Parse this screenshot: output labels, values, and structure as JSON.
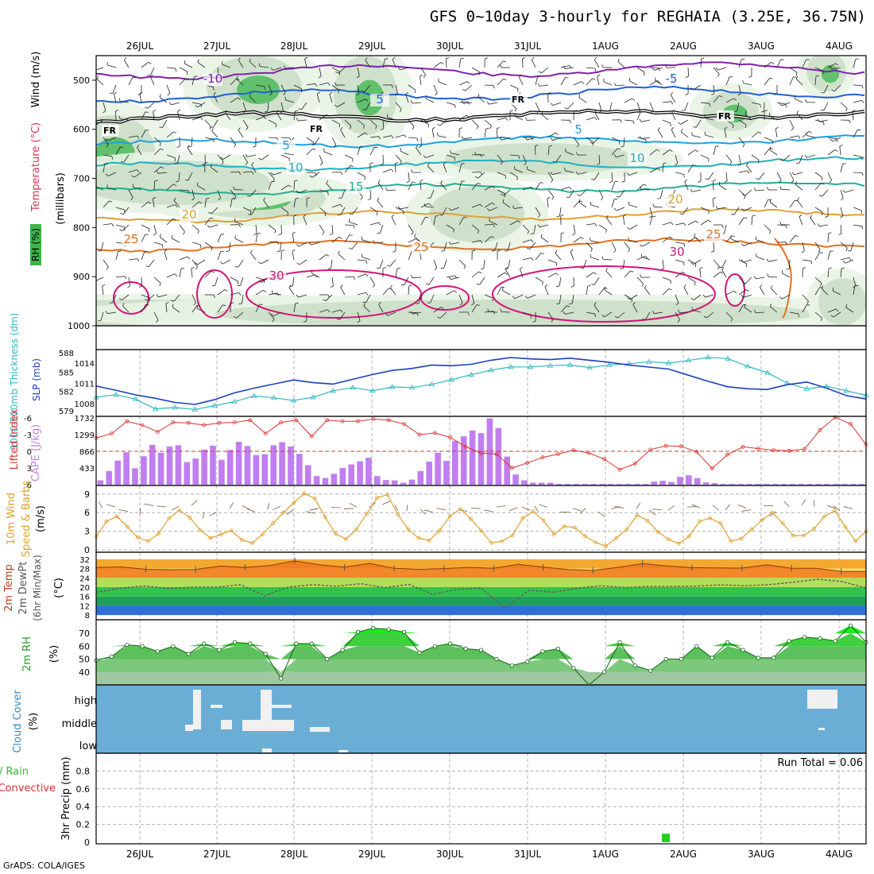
{
  "title": "GFS 0~10day 3-hourly for REGHAIA (3.25E, 36.75N)",
  "credit": "GrADS: COLA/IGES",
  "colors": {
    "grid": "#b0b0b0",
    "wind_barb": "#222222",
    "temp_contour_hot": "#d4147a",
    "temp_contour_warm": "#e07020",
    "temp_contour_mid": "#20b090",
    "temp_contour_cool": "#2060d0",
    "temp_contour_cold": "#8020b0",
    "freezing_line": "#000000",
    "rh_fill": "#3cb44b",
    "slp_line": "#1c3fbf",
    "thickness_line": "#2fb8c0",
    "cape_bar": "#c07ef0",
    "li_line": "#e03030",
    "wind_speed_line": "#e0a030",
    "temp_band_hot": "#f07820",
    "dewpt_line": "#606060",
    "rh2m_fill": "#33cc33",
    "cloud_bg": "#6aaed6",
    "cloud_fill": "#f0f0f0",
    "precip_bar": "#22cc22"
  },
  "chart_data": [
    {
      "type": "contour",
      "panel": "upper_air",
      "left_labels": [
        "RH (%)",
        "Temperature (°C)",
        "Wind (m/s)"
      ],
      "ylabel": "(millibars)",
      "x_top_labels": [
        "26JUL",
        "27JUL",
        "28JUL",
        "29JUL",
        "30JUL",
        "31JUL",
        "1AUG",
        "2AUG",
        "3AUG",
        "4AUG"
      ],
      "y_ticks": [
        "500",
        "600",
        "700",
        "800",
        "900",
        "1000"
      ],
      "freezing_label": "FR",
      "contour_labels": [
        "-10",
        "-5",
        "5",
        "10",
        "15",
        "20",
        "25",
        "30"
      ]
    },
    {
      "type": "line",
      "panel": "slp_thickness",
      "left_labels": [
        "1000-500mb Thickness (dm)",
        "SLP (mb)"
      ],
      "y_ticks_thickness": [
        "588",
        "585",
        "582",
        "579"
      ],
      "y_ticks_slp": [
        "1014",
        "1011",
        "1008"
      ],
      "series": [
        {
          "name": "SLP (mb)",
          "values": [
            1010.6,
            1010.0,
            1009.3,
            1008.8,
            1008.2,
            1007.9,
            1008.6,
            1009.6,
            1010.3,
            1010.9,
            1011.5,
            1011.1,
            1010.9,
            1011.6,
            1012.3,
            1012.9,
            1013.2,
            1013.7,
            1013.6,
            1013.8,
            1014.4,
            1014.8,
            1014.6,
            1014.5,
            1014.7,
            1014.4,
            1014.1,
            1013.7,
            1013.4,
            1013.1,
            1012.2,
            1011.3,
            1010.5,
            1010.2,
            1010.1,
            1010.8,
            1011.2,
            1010.3,
            1009.2,
            1008.7
          ]
        },
        {
          "name": "1000-500mb Thickness (dm)",
          "values": [
            581.1,
            581.5,
            580.8,
            579.3,
            579.5,
            579.2,
            579.8,
            580.4,
            581.3,
            581.0,
            580.6,
            581.1,
            582.1,
            582.6,
            582.1,
            582.7,
            582.6,
            583.1,
            583.8,
            584.6,
            585.3,
            585.8,
            585.8,
            586.0,
            586.1,
            585.7,
            586.1,
            586.3,
            586.6,
            586.4,
            586.8,
            587.3,
            587.1,
            585.9,
            584.9,
            583.3,
            582.4,
            582.8,
            582.1,
            581.4
          ]
        }
      ]
    },
    {
      "type": "bar",
      "panel": "cape_li",
      "left_labels": [
        "Lifted Index",
        "CAPE (J/kg)"
      ],
      "y_ticks_cape": [
        "1732",
        "1299",
        "866",
        "433"
      ],
      "y_ticks_li": [
        "-6",
        "-3",
        "0",
        "3",
        "6"
      ],
      "series": [
        {
          "name": "CAPE (J/kg)",
          "values": [
            110,
            350,
            620,
            830,
            420,
            730,
            1020,
            820,
            980,
            1010,
            580,
            670,
            900,
            1000,
            640,
            890,
            1100,
            990,
            760,
            780,
            1010,
            1090,
            980,
            790,
            500,
            220,
            170,
            280,
            430,
            520,
            600,
            690,
            220,
            120,
            110,
            50,
            130,
            350,
            590,
            820,
            610,
            1120,
            1240,
            1390,
            1320,
            1700,
            1450,
            720,
            260,
            110,
            50,
            50,
            50,
            20,
            20,
            20,
            20,
            20,
            20,
            20,
            20,
            20,
            20,
            20,
            80,
            100,
            70,
            200,
            240,
            170,
            60,
            40,
            20,
            20,
            20,
            20,
            20,
            20,
            20,
            20,
            20,
            20,
            20,
            20,
            20,
            20,
            20,
            20,
            20
          ]
        },
        {
          "name": "Lifted Index",
          "values": [
            -2.4,
            -3.2,
            -5.4,
            -4.7,
            -3.5,
            -5.2,
            -5.1,
            -4.7,
            -5.1,
            -5.2,
            -5.6,
            -3.2,
            -5.2,
            -5.6,
            -2.7,
            -5.6,
            -5.4,
            -5.4,
            -5.8,
            -5.6,
            -4.9,
            -3.0,
            -3.3,
            -2.5,
            -0.8,
            0.3,
            0.5,
            3.0,
            2.1,
            1.1,
            0.5,
            -0.2,
            0.3,
            1.4,
            3.3,
            2.2,
            -0.3,
            -1.0,
            -0.9,
            0.1,
            3.1,
            0.6,
            -0.8,
            -0.5,
            -0.2,
            -0.1,
            -0.4,
            -3.8,
            -6.1,
            -4.9,
            -1.2
          ]
        }
      ]
    },
    {
      "type": "line",
      "panel": "wind10m",
      "left_labels": [
        "10m Wind",
        "Speed & Barbs",
        "(m/s)"
      ],
      "y_ticks": [
        "9",
        "6",
        "3",
        "0"
      ],
      "series": [
        {
          "name": "10m Wind Speed (m/s)",
          "values": [
            2.1,
            4.6,
            5.4,
            3.7,
            2.0,
            1.4,
            2.6,
            5.1,
            6.4,
            5.2,
            3.2,
            1.9,
            2.5,
            3.1,
            1.6,
            1.1,
            2.5,
            4.3,
            6.0,
            7.6,
            9.1,
            8.3,
            5.3,
            2.6,
            1.7,
            3.3,
            5.8,
            8.4,
            8.9,
            5.7,
            3.3,
            1.9,
            1.5,
            3.1,
            5.4,
            6.6,
            5.0,
            3.1,
            1.1,
            1.4,
            2.3,
            5.1,
            6.2,
            4.7,
            2.5,
            3.8,
            3.6,
            2.2,
            1.2,
            0.6,
            1.9,
            3.3,
            5.6,
            4.7,
            2.9,
            1.7,
            1.0,
            2.2,
            4.6,
            5.1,
            4.3,
            1.4,
            1.8,
            3.3,
            4.8,
            6.0,
            4.3,
            2.3,
            2.3,
            3.4,
            5.4,
            6.3,
            3.7,
            1.4,
            3.0
          ]
        }
      ]
    },
    {
      "type": "area",
      "panel": "temp2m",
      "left_labels": [
        "2m Temp",
        "2m DewPt",
        "(6hr Min/Max)",
        "(°C)"
      ],
      "y_ticks": [
        "32",
        "28",
        "24",
        "20",
        "16",
        "12",
        "8"
      ],
      "series": [
        {
          "name": "2m Temp (°C)",
          "values": [
            28.5,
            28.7,
            27.7,
            27.5,
            27.6,
            29.1,
            28.5,
            29.3,
            31.3,
            29.6,
            28.6,
            30.2,
            28.1,
            27.7,
            28.0,
            28.5,
            28.1,
            29.8,
            28.6,
            27.6,
            27.2,
            28.5,
            30.1,
            29.1,
            28.4,
            28.3,
            28.2,
            29.6,
            28.1,
            28.1,
            26.8,
            26.8
          ]
        },
        {
          "name": "2m DewPt (°C)",
          "values": [
            17.8,
            19.6,
            20.5,
            19.5,
            20.0,
            20.0,
            21.1,
            16.3,
            20.1,
            21.1,
            20.4,
            21.5,
            19.8,
            21.2,
            16.9,
            19.1,
            19.6,
            11.0,
            18.7,
            17.8,
            19.6,
            20.6,
            19.8,
            20.3,
            20.3,
            20.5,
            21.0,
            20.6,
            21.1,
            22.2,
            23.4,
            22.4,
            19.7
          ]
        }
      ]
    },
    {
      "type": "area",
      "panel": "rh2m",
      "left_labels": [
        "2m RH",
        "(%)"
      ],
      "y_ticks": [
        "70",
        "60",
        "50",
        "40"
      ],
      "series": [
        {
          "name": "2m RH (%)",
          "values": [
            49,
            52,
            61,
            60,
            56,
            60,
            54,
            62,
            57,
            63,
            62,
            54,
            35,
            62,
            62,
            50,
            57,
            71,
            74,
            73,
            71,
            55,
            60,
            62,
            58,
            57,
            50,
            45,
            48,
            56,
            58,
            43,
            30,
            40,
            63,
            45,
            41,
            50,
            50,
            60,
            51,
            63,
            57,
            51,
            51,
            64,
            67,
            66,
            64,
            76,
            63
          ]
        }
      ]
    },
    {
      "type": "heatmap",
      "panel": "cloud",
      "left_labels": [
        "Cloud Cover",
        "(%)"
      ],
      "y_ticks": [
        "high",
        "middle",
        "low"
      ]
    },
    {
      "type": "bar",
      "panel": "precip",
      "left_labels": [
        "Total / Rain",
        "Convective",
        "3hr Precip (mm)"
      ],
      "run_total": "Run Total = 0.06",
      "y_ticks": [
        "0.8",
        "0.6",
        "0.4",
        "0.2",
        "0"
      ],
      "x_bottom_labels": [
        "26JUL",
        "27JUL",
        "28JUL",
        "29JUL",
        "30JUL",
        "31JUL",
        "1AUG",
        "2AUG",
        "3AUG",
        "4AUG"
      ],
      "series": [
        {
          "name": "Total / Rain",
          "values": [
            0.06
          ]
        }
      ]
    }
  ]
}
